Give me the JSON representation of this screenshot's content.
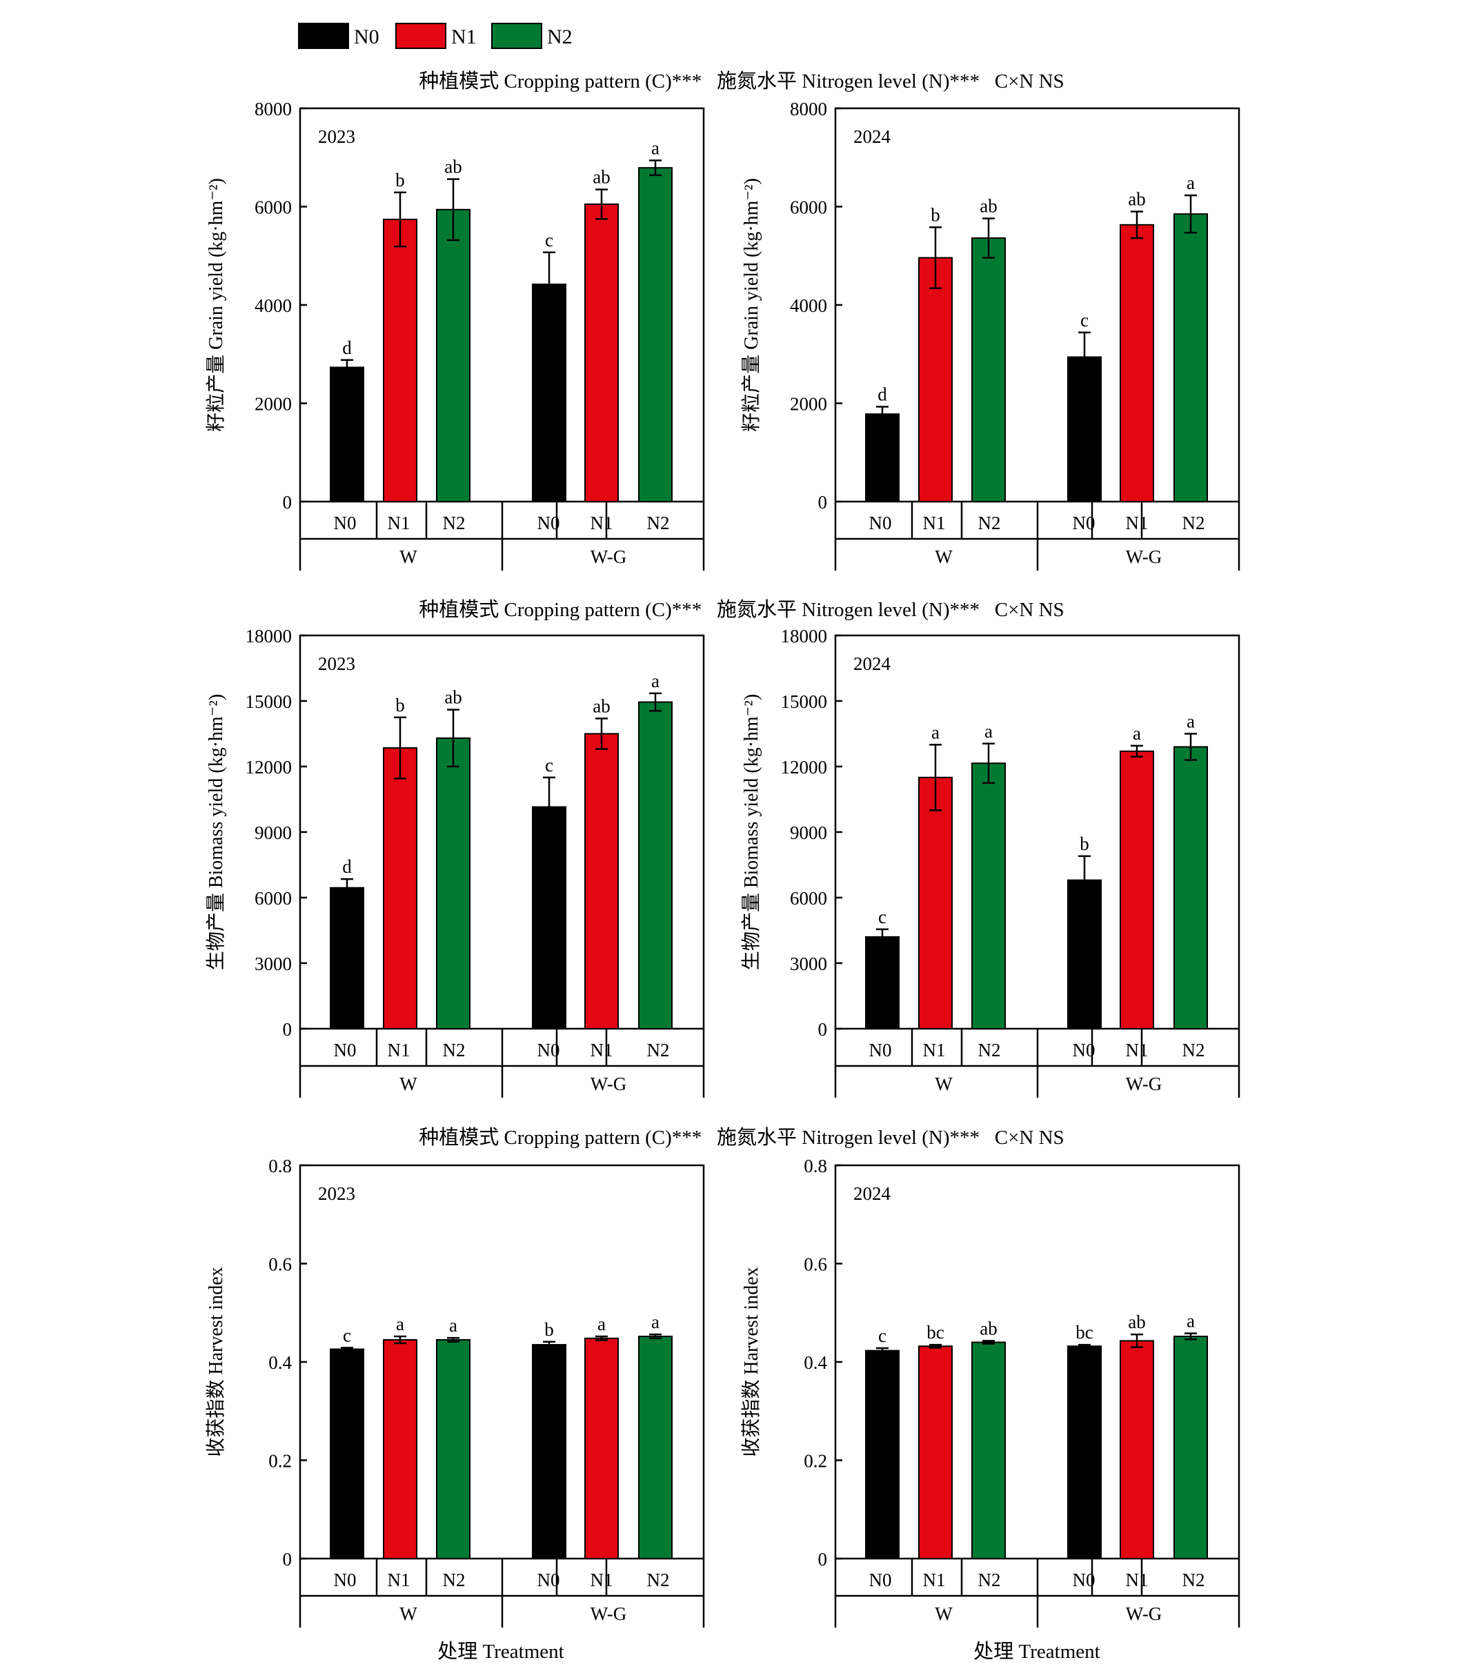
{
  "legend": {
    "items": [
      {
        "label": "N0",
        "color": "#000000"
      },
      {
        "label": "N1",
        "color": "#e30613"
      },
      {
        "label": "N2",
        "color": "#007a33"
      }
    ]
  },
  "significance_rows": [
    "种植模式 Cropping pattern (C)***   施氮水平 Nitrogen level (N)***   C×N NS",
    "种植模式 Cropping pattern (C)***   施氮水平 Nitrogen level (N)***   C×N NS",
    "种植模式 Cropping pattern (C)***   施氮水平 Nitrogen level (N)***   C×N NS"
  ],
  "x_title": "处理 Treatment",
  "chart_data": [
    {
      "type": "bar",
      "year": "2023",
      "ylabel": "籽粒产量 Grain yield (kg·hm⁻²)",
      "ylim": [
        0,
        8000
      ],
      "yticks": [
        "0",
        "2000",
        "4000",
        "6000",
        "8000"
      ],
      "groups": [
        "W",
        "W-G"
      ],
      "categories": [
        "N0",
        "N1",
        "N2"
      ],
      "values": [
        [
          2730,
          5740,
          5940
        ],
        [
          4420,
          6050,
          6790
        ]
      ],
      "errors": [
        [
          150,
          550,
          620
        ],
        [
          650,
          300,
          150
        ]
      ],
      "letters": [
        [
          "d",
          "b",
          "ab"
        ],
        [
          "c",
          "ab",
          "a"
        ]
      ]
    },
    {
      "type": "bar",
      "year": "2024",
      "ylabel": "籽粒产量 Grain yield (kg·hm⁻²)",
      "ylim": [
        0,
        8000
      ],
      "yticks": [
        "0",
        "2000",
        "4000",
        "6000",
        "8000"
      ],
      "groups": [
        "W",
        "W-G"
      ],
      "categories": [
        "N0",
        "N1",
        "N2"
      ],
      "values": [
        [
          1780,
          4960,
          5360
        ],
        [
          2940,
          5630,
          5850
        ]
      ],
      "errors": [
        [
          150,
          620,
          400
        ],
        [
          500,
          270,
          380
        ]
      ],
      "letters": [
        [
          "d",
          "b",
          "ab"
        ],
        [
          "c",
          "ab",
          "a"
        ]
      ]
    },
    {
      "type": "bar",
      "year": "2023",
      "ylabel": "生物产量 Biomass yield (kg·hm⁻²)",
      "ylim": [
        0,
        18000
      ],
      "yticks": [
        "0",
        "3000",
        "6000",
        "9000",
        "12000",
        "15000",
        "18000"
      ],
      "groups": [
        "W",
        "W-G"
      ],
      "categories": [
        "N0",
        "N1",
        "N2"
      ],
      "values": [
        [
          6450,
          12850,
          13300
        ],
        [
          10150,
          13500,
          14950
        ]
      ],
      "errors": [
        [
          400,
          1400,
          1300
        ],
        [
          1350,
          700,
          400
        ]
      ],
      "letters": [
        [
          "d",
          "b",
          "ab"
        ],
        [
          "c",
          "ab",
          "a"
        ]
      ]
    },
    {
      "type": "bar",
      "year": "2024",
      "ylabel": "生物产量 Biomass yield (kg·hm⁻²)",
      "ylim": [
        0,
        18000
      ],
      "yticks": [
        "0",
        "3000",
        "6000",
        "9000",
        "12000",
        "15000",
        "18000"
      ],
      "groups": [
        "W",
        "W-G"
      ],
      "categories": [
        "N0",
        "N1",
        "N2"
      ],
      "values": [
        [
          4200,
          11500,
          12150
        ],
        [
          6800,
          12700,
          12900
        ]
      ],
      "errors": [
        [
          350,
          1500,
          900
        ],
        [
          1100,
          250,
          600
        ]
      ],
      "letters": [
        [
          "c",
          "a",
          "a"
        ],
        [
          "b",
          "a",
          "a"
        ]
      ]
    },
    {
      "type": "bar",
      "year": "2023",
      "ylabel": "收获指数 Harvest index",
      "ylim": [
        0,
        0.8
      ],
      "yticks": [
        "0",
        "0.2",
        "0.4",
        "0.6",
        "0.8"
      ],
      "groups": [
        "W",
        "W-G"
      ],
      "categories": [
        "N0",
        "N1",
        "N2"
      ],
      "values": [
        [
          0.426,
          0.445,
          0.445
        ],
        [
          0.435,
          0.448,
          0.452
        ]
      ],
      "errors": [
        [
          0.003,
          0.007,
          0.004
        ],
        [
          0.006,
          0.004,
          0.004
        ]
      ],
      "letters": [
        [
          "c",
          "a",
          "a"
        ],
        [
          "b",
          "a",
          "a"
        ]
      ]
    },
    {
      "type": "bar",
      "year": "2024",
      "ylabel": "收获指数 Harvest index",
      "ylim": [
        0,
        0.8
      ],
      "yticks": [
        "0",
        "0.2",
        "0.4",
        "0.6",
        "0.8"
      ],
      "groups": [
        "W",
        "W-G"
      ],
      "categories": [
        "N0",
        "N1",
        "N2"
      ],
      "values": [
        [
          0.423,
          0.432,
          0.44
        ],
        [
          0.432,
          0.443,
          0.452
        ]
      ],
      "errors": [
        [
          0.005,
          0.003,
          0.003
        ],
        [
          0.003,
          0.013,
          0.006
        ]
      ],
      "letters": [
        [
          "c",
          "bc",
          "ab"
        ],
        [
          "bc",
          "ab",
          "a"
        ]
      ]
    }
  ]
}
